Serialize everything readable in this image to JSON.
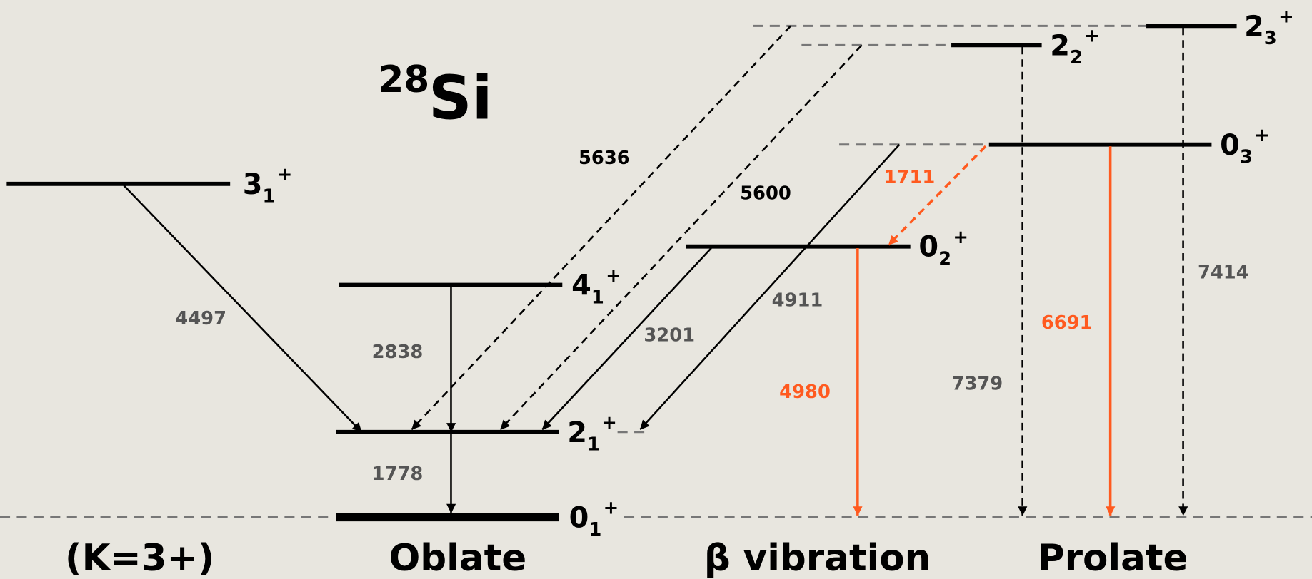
{
  "title": {
    "mass": "28",
    "symbol": "Si"
  },
  "levels": [
    {
      "spin": "3",
      "index": "1",
      "parity": "+"
    },
    {
      "spin": "4",
      "index": "1",
      "parity": "+"
    },
    {
      "spin": "2",
      "index": "1",
      "parity": "+"
    },
    {
      "spin": "0",
      "index": "1",
      "parity": "+"
    },
    {
      "spin": "0",
      "index": "2",
      "parity": "+"
    },
    {
      "spin": "0",
      "index": "3",
      "parity": "+"
    },
    {
      "spin": "2",
      "index": "2",
      "parity": "+"
    },
    {
      "spin": "2",
      "index": "3",
      "parity": "+"
    }
  ],
  "transitions": [
    {
      "energy": 4497
    },
    {
      "energy": 2838
    },
    {
      "energy": 1778
    },
    {
      "energy": 5636
    },
    {
      "energy": 5600
    },
    {
      "energy": 3201
    },
    {
      "energy": 4911
    },
    {
      "energy": 1711
    },
    {
      "energy": 4980
    },
    {
      "energy": 7379
    },
    {
      "energy": 6691
    },
    {
      "energy": 7414
    }
  ],
  "bands": [
    "(K=3+)",
    "Oblate",
    "β vibration",
    "Prolate"
  ]
}
